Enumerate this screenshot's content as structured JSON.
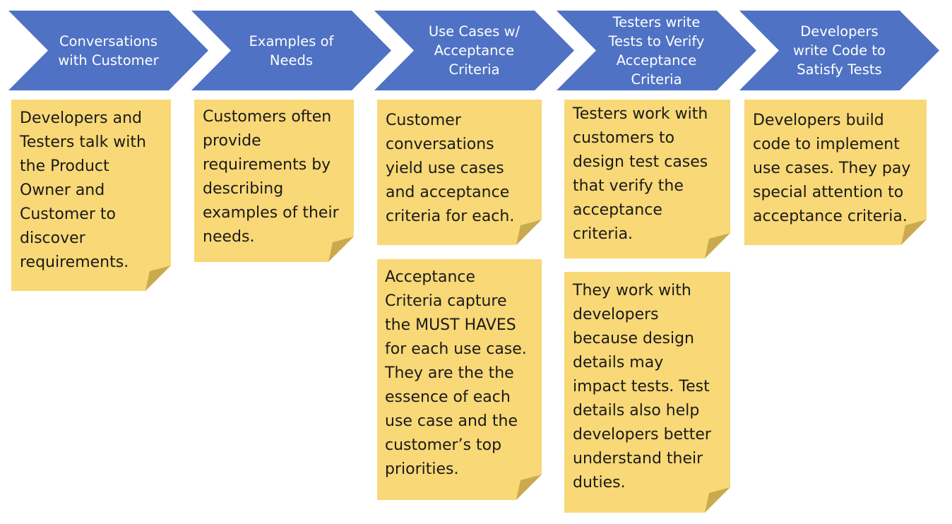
{
  "colors": {
    "chevron": "#4f72c4",
    "note": "#f8d877",
    "note_fold": "#c9aa4e",
    "text_on_chevron": "#ffffff"
  },
  "steps": [
    {
      "label": "Conversations\nwith Customer"
    },
    {
      "label": "Examples of\nNeeds"
    },
    {
      "label": "Use Cases w/\nAcceptance\nCriteria"
    },
    {
      "label": "Testers write\nTests to Verify\nAcceptance\nCriteria"
    },
    {
      "label": "Developers\nwrite Code to\nSatisfy Tests"
    }
  ],
  "notes": {
    "conversations": "Developers and\nTesters talk with\nthe Product\nOwner and\nCustomer to\ndiscover\nrequirements.",
    "examples": "Customers often\nprovide\nrequirements by\ndescribing\nexamples of their\nneeds.",
    "use_cases": "Customer\nconversations\nyield use cases\nand  acceptance\ncriteria for each.",
    "acceptance": "Acceptance\nCriteria capture\nthe MUST HAVES\nfor each use case.\nThey are the the\nessence of each\nuse case and the\ncustomer’s top\npriorities.",
    "testers": "Testers work with\ncustomers to\ndesign test cases\nthat verify the\nacceptance\ncriteria.",
    "testers_devs": "They work with\ndevelopers\nbecause design\ndetails may\nimpact tests. Test\ndetails also help\ndevelopers better\nunderstand their\nduties.",
    "developers": "Developers build\ncode to implement\nuse cases. They pay\nspecial attention to\nacceptance criteria."
  }
}
